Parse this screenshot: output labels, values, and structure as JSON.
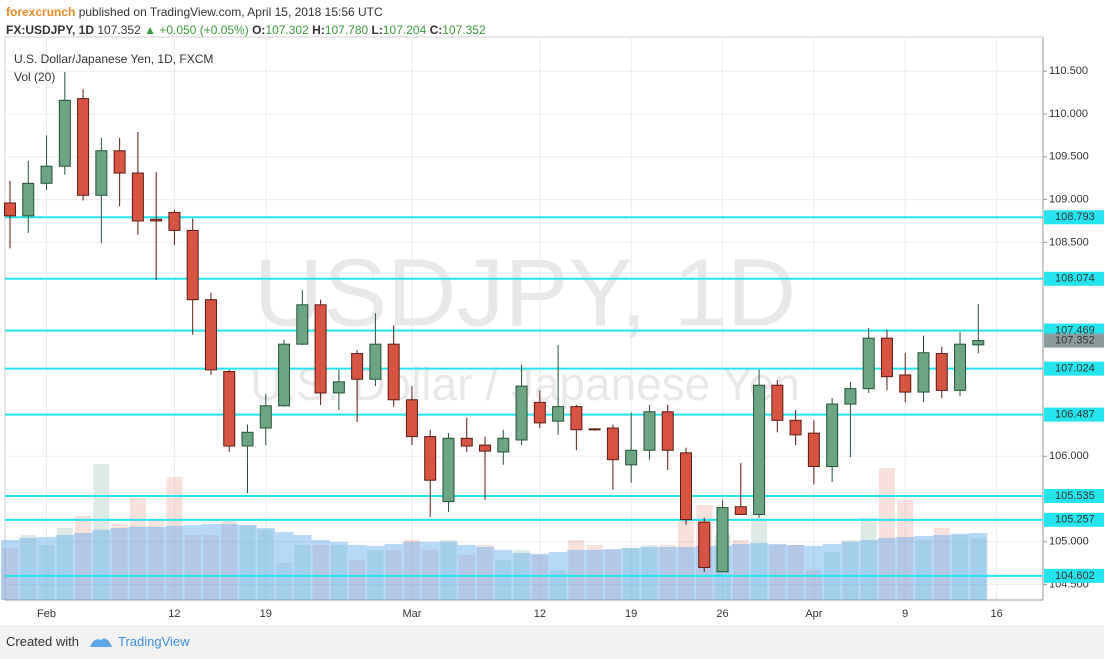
{
  "header": {
    "author": "forexcrunch",
    "published": "published on TradingView.com, April 15, 2018 15:56 UTC",
    "symbol": "FX:USDJPY, 1D",
    "price": "107.352",
    "change": "▲ +0.050 (+0.05%)",
    "ohlc": [
      {
        "label": "O:",
        "value": "107.302"
      },
      {
        "label": "H:",
        "value": "107.780"
      },
      {
        "label": "L:",
        "value": "107.204"
      },
      {
        "label": "C:",
        "value": "107.352"
      }
    ]
  },
  "chart_data": {
    "type": "candlestick",
    "title": "U.S. Dollar/Japanese Yen, 1D, FXCM",
    "watermark": "USDJPY, 1D",
    "watermark_subtitle": "U.S. Dollar / Japanese Yen",
    "categories": [
      null,
      null,
      "Feb",
      null,
      null,
      null,
      null,
      null,
      null,
      "12",
      null,
      null,
      null,
      null,
      "19",
      null,
      null,
      null,
      null,
      null,
      null,
      null,
      "Mar",
      null,
      null,
      null,
      null,
      null,
      null,
      "12",
      null,
      null,
      null,
      null,
      "19",
      null,
      null,
      null,
      null,
      "26",
      null,
      null,
      null,
      null,
      "Apr",
      null,
      null,
      null,
      null,
      "9",
      null,
      null,
      null,
      null,
      "16",
      null,
      null
    ],
    "open": [
      108.96,
      108.81,
      109.19,
      109.39,
      110.18,
      109.05,
      109.57,
      109.31,
      108.77,
      108.85,
      108.64,
      107.83,
      106.99,
      106.12,
      106.33,
      106.59,
      107.31,
      107.77,
      106.74,
      107.2,
      106.9,
      107.31,
      106.66,
      106.23,
      105.47,
      106.21,
      106.13,
      106.05,
      106.19,
      106.63,
      106.41,
      106.58,
      106.32,
      106.33,
      105.9,
      106.07,
      106.52,
      106.04,
      105.23,
      104.65,
      105.41,
      105.32,
      106.83,
      106.42,
      106.27,
      105.88,
      106.61,
      106.79,
      107.38,
      106.95,
      106.75,
      107.2,
      106.77,
      107.302,
      null,
      null,
      null
    ],
    "high": [
      109.22,
      109.45,
      109.75,
      110.49,
      110.29,
      109.72,
      109.72,
      109.79,
      109.32,
      108.88,
      108.78,
      107.91,
      107.01,
      106.37,
      106.73,
      107.36,
      107.94,
      107.83,
      107.01,
      107.24,
      107.67,
      107.53,
      106.82,
      106.31,
      106.27,
      106.45,
      106.23,
      106.31,
      107.07,
      106.77,
      107.3,
      106.6,
      106.33,
      106.37,
      106.51,
      106.6,
      106.6,
      106.1,
      105.28,
      105.49,
      105.92,
      107.01,
      106.89,
      106.54,
      106.42,
      106.68,
      106.87,
      107.5,
      107.48,
      107.21,
      107.41,
      107.28,
      107.45,
      107.78,
      null,
      null,
      null
    ],
    "low": [
      108.43,
      108.61,
      109.11,
      109.29,
      108.99,
      108.49,
      108.92,
      108.59,
      108.06,
      108.47,
      107.42,
      106.95,
      106.05,
      105.57,
      106.13,
      106.58,
      107.3,
      106.6,
      106.54,
      106.4,
      106.82,
      106.58,
      106.13,
      105.29,
      105.35,
      106.05,
      105.49,
      105.9,
      106.13,
      106.33,
      106.25,
      106.07,
      106.3,
      105.61,
      105.69,
      105.96,
      105.84,
      105.2,
      104.65,
      104.65,
      105.32,
      105.28,
      106.28,
      106.13,
      105.67,
      105.7,
      105.99,
      106.74,
      106.77,
      106.63,
      106.63,
      106.68,
      106.7,
      107.204,
      null,
      null,
      null
    ],
    "close": [
      108.81,
      109.19,
      109.39,
      110.16,
      109.05,
      109.57,
      109.31,
      108.75,
      108.75,
      108.64,
      107.83,
      107.01,
      106.12,
      106.28,
      106.59,
      107.31,
      107.77,
      106.74,
      106.87,
      106.9,
      107.31,
      106.66,
      106.23,
      105.72,
      106.21,
      106.12,
      106.06,
      106.21,
      106.82,
      106.39,
      106.58,
      106.31,
      106.31,
      105.96,
      106.07,
      106.52,
      106.07,
      105.26,
      104.7,
      105.4,
      105.32,
      106.83,
      106.42,
      106.25,
      105.88,
      106.61,
      106.79,
      107.38,
      106.93,
      106.75,
      107.21,
      106.77,
      107.31,
      107.352,
      null,
      null,
      null
    ],
    "up_color": "#6ba583",
    "down_color": "#d75442",
    "volume": {
      "label": "Vol (20)",
      "ylim": [
        0,
        100
      ],
      "values": [
        32.5,
        40.6,
        34.4,
        45,
        52.5,
        85,
        47.5,
        63.8,
        50,
        76.9,
        40.6,
        40.6,
        50,
        46.9,
        43.8,
        23.1,
        34.4,
        34.4,
        34.4,
        25,
        31.3,
        31.3,
        37.5,
        31.3,
        37.5,
        28.1,
        34.4,
        25,
        31.3,
        28.1,
        18.8,
        37.5,
        34.4,
        31.3,
        32.5,
        34.4,
        34.4,
        50,
        59.4,
        40.6,
        37.5,
        51.3,
        34.4,
        34.4,
        18.8,
        30,
        37.5,
        51.3,
        82.5,
        62.5,
        37.5,
        45,
        40.6,
        38.8,
        null,
        null,
        null
      ],
      "ma": [
        37.5,
        38.8,
        39.4,
        40.6,
        41.9,
        43.8,
        45,
        45.6,
        45.6,
        46.3,
        46.9,
        47.5,
        47.5,
        46.9,
        45,
        42.5,
        40.6,
        37.5,
        36.3,
        34.4,
        33.8,
        35,
        36.3,
        36.3,
        36.3,
        34.4,
        33.1,
        31.3,
        29.4,
        28.8,
        30,
        31.3,
        31.3,
        31.9,
        32.5,
        33.1,
        33.1,
        33.1,
        33.8,
        33.8,
        35,
        35.6,
        35,
        34.4,
        33.8,
        35,
        36.3,
        37.5,
        38.8,
        39.4,
        40,
        40.6,
        41.3,
        41.9,
        null,
        null,
        null
      ],
      "ma_color": "#5eaaf2"
    },
    "levels": [
      108.793,
      108.074,
      107.469,
      107.024,
      106.487,
      105.535,
      105.257,
      104.602
    ],
    "level_color": "#24e4ee",
    "ylim": [
      104.32,
      110.9
    ],
    "yticks": [
      {
        "value": 104.5,
        "label": "104.500"
      },
      {
        "value": 105,
        "label": "105.000"
      },
      {
        "value": 106,
        "label": "106.000"
      },
      {
        "value": 108.5,
        "label": "108.500"
      },
      {
        "value": 109,
        "label": "109.000"
      },
      {
        "value": 109.5,
        "label": "109.500"
      },
      {
        "value": 110,
        "label": "110.000"
      },
      {
        "value": 110.5,
        "label": "110.500"
      }
    ],
    "grid": true
  },
  "footer": {
    "created": "Created with",
    "brand": "TradingView"
  }
}
